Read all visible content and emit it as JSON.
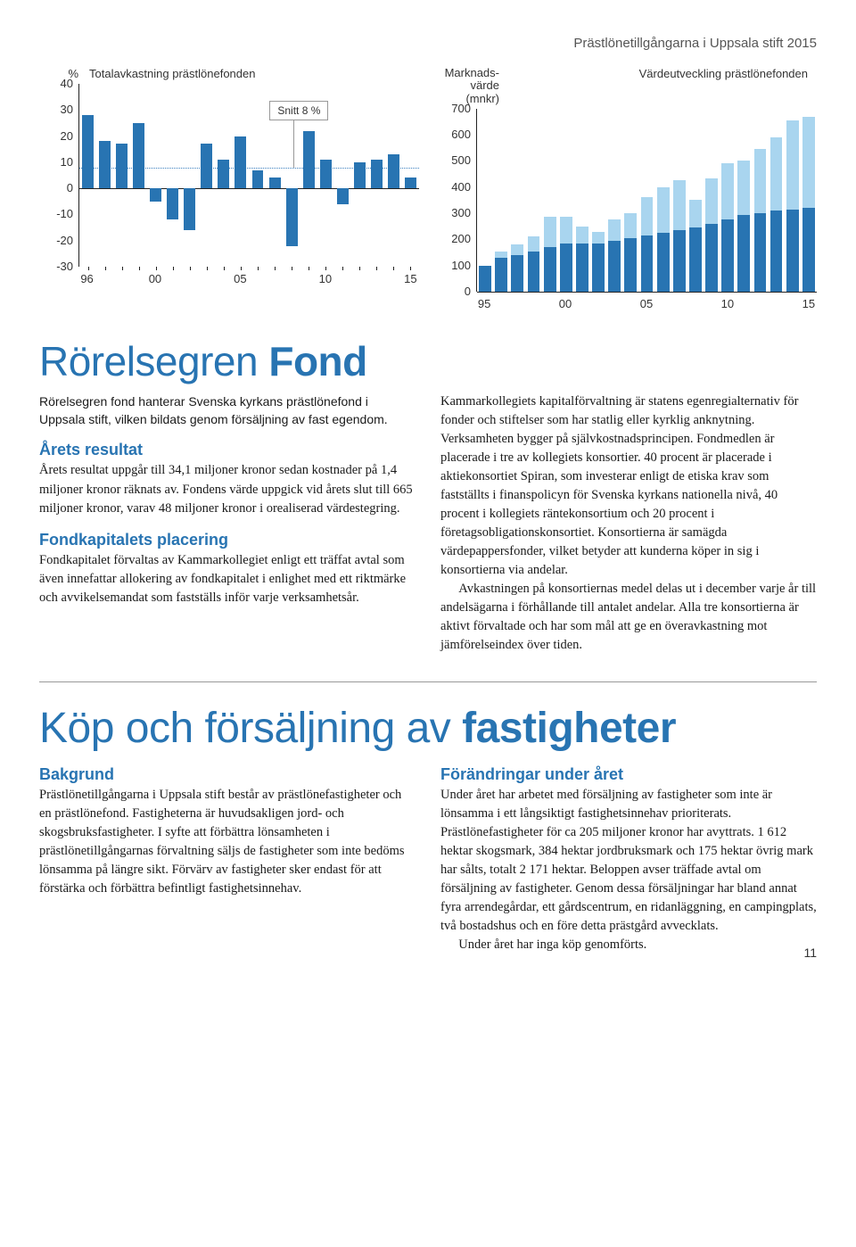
{
  "header": "Prästlönetillgångarna i Uppsala stift 2015",
  "page_number": "11",
  "chart1": {
    "type": "bar",
    "ylabel_top": "%",
    "title": "Totalavkastning prästlönefonden",
    "ymin": -30,
    "ymax": 40,
    "ytick_step": 10,
    "x_labels": [
      "96",
      "",
      "",
      "",
      "00",
      "",
      "",
      "",
      "",
      "05",
      "",
      "",
      "",
      "",
      "10",
      "",
      "",
      "",
      "",
      "15"
    ],
    "values": [
      28,
      18,
      17,
      25,
      -5,
      -12,
      -16,
      17,
      11,
      20,
      7,
      4,
      -22,
      22,
      11,
      -6,
      10,
      11,
      13,
      4
    ],
    "positive_color": "#2874b2",
    "avg_value": 8,
    "avg_label": "Snitt 8 %",
    "avg_color": "#3b7fbf",
    "axis_color": "#222222",
    "background": "#ffffff"
  },
  "chart2": {
    "type": "stacked-bar",
    "ylabel_top": "Marknads-\nvärde (mnkr)",
    "title": "Värdeutveckling prästlönefonden",
    "ymin": 0,
    "ymax": 700,
    "ytick_step": 100,
    "x_labels": [
      "95",
      "",
      "",
      "",
      "",
      "00",
      "",
      "",
      "",
      "",
      "05",
      "",
      "",
      "",
      "",
      "10",
      "",
      "",
      "",
      "",
      "15"
    ],
    "bottom_values": [
      100,
      130,
      140,
      155,
      170,
      185,
      185,
      185,
      195,
      205,
      215,
      225,
      235,
      245,
      260,
      275,
      295,
      300,
      310,
      315,
      320
    ],
    "top_values": [
      0,
      25,
      40,
      55,
      115,
      100,
      65,
      45,
      80,
      95,
      145,
      175,
      190,
      105,
      175,
      215,
      205,
      245,
      280,
      340,
      350
    ],
    "top_color": "#a9d5ef",
    "bottom_color": "#2874b2",
    "axis_color": "#222222",
    "background": "#ffffff"
  },
  "section1": {
    "title_light": "Rörelsegren ",
    "title_bold": "Fond",
    "intro": "Rörelsegren fond hanterar Svenska kyrkans prästlönefond i Uppsala stift, vilken bildats genom försäljning av fast egendom.",
    "h_resultat": "Årets resultat",
    "p_resultat": "Årets resultat uppgår till 34,1 miljoner kronor sedan kostnader på 1,4 miljoner kronor räknats av. Fondens värde uppgick vid årets slut till 665 miljoner kronor, varav 48 miljoner kronor i orealiserad värdestegring.",
    "h_placering": "Fondkapitalets placering",
    "p_placering": "Fondkapitalet förvaltas av Kammarkollegiet enligt ett träffat avtal som även innefattar allokering av fondkapitalet i enlighet med ett riktmärke och avvikelsemandat som fastställs inför varje verksamhetsår.",
    "p_right1": "Kammarkollegiets kapitalförvaltning är statens egenregialternativ för fonder och stiftelser som har statlig eller kyrklig anknytning. Verksamheten bygger på självkostnadsprincipen. Fondmedlen är placerade i tre av kollegiets konsortier. 40 procent är placerade i aktiekonsortiet Spiran, som investerar enligt de etiska krav som fastställts i finanspolicyn för Svenska kyrkans nationella nivå, 40 procent i kollegiets räntekonsortium och 20 procent i företagsobligationskonsortiet. Konsortierna är samägda värdepappersfonder, vilket betyder att kunderna köper in sig i konsortierna via andelar.",
    "p_right2": "Avkastningen på konsortiernas medel delas ut i december varje år till andelsägarna i förhållande till antalet andelar. Alla tre konsortierna är aktivt förvaltade och har som mål att ge en överavkastning mot jämförelseindex över tiden."
  },
  "section2": {
    "title_light": "Köp och försäljning av ",
    "title_bold": "fastigheter",
    "h_bakgrund": "Bakgrund",
    "p_bakgrund": "Prästlönetillgångarna i Uppsala stift består av prästlönefastigheter och en prästlönefond. Fastigheterna är huvudsakligen jord- och skogsbruksfastigheter. I syfte att förbättra lönsamheten i prästlönetillgångarnas förvaltning säljs de fastigheter som inte bedöms lönsamma på längre sikt. Förvärv av fastigheter sker endast för att förstärka och förbättra befintligt fastighetsinnehav.",
    "h_forandringar": "Förändringar under året",
    "p_forandringar1": "Under året har arbetet med försäljning av fastigheter som inte är lönsamma i ett långsiktigt fastighetsinnehav prioriterats. Prästlönefastigheter för ca 205 miljoner kronor har avyttrats. 1 612 hektar skogsmark, 384 hektar jordbruksmark och 175 hektar övrig mark har sålts, totalt 2 171 hektar. Beloppen avser träffade avtal om försäljning av fastigheter. Genom dessa försäljningar har bland annat fyra arrendegårdar, ett gårdscentrum, en ridanläggning, en campingplats, två bostadshus och en före detta prästgård avvecklats.",
    "p_forandringar2": "Under året har inga köp genomförts."
  }
}
